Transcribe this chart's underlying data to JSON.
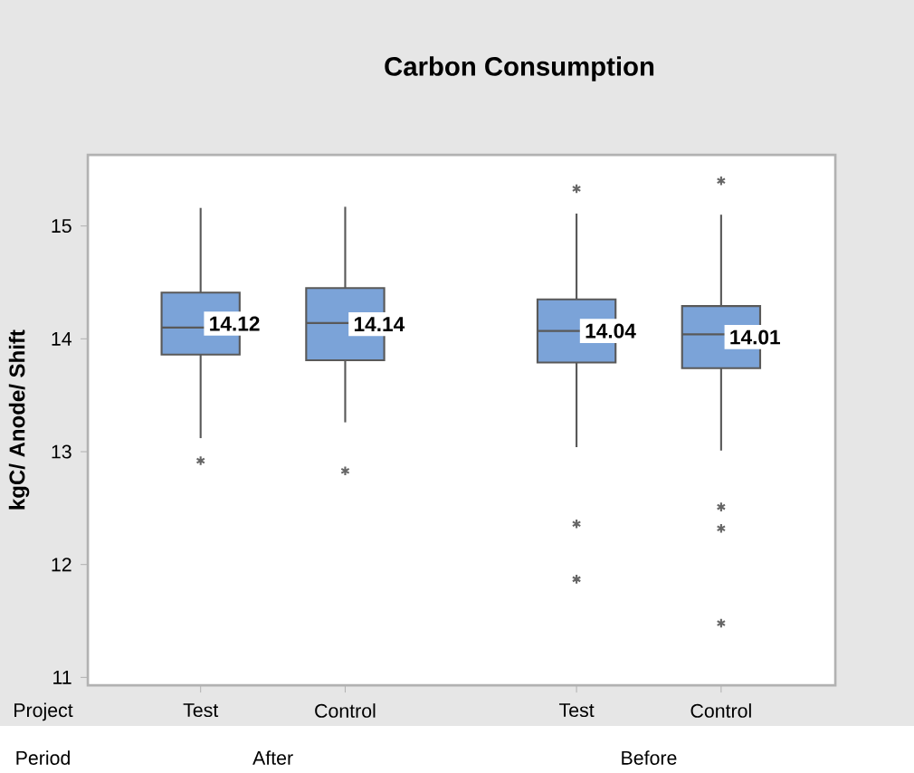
{
  "chart_data": {
    "type": "box",
    "title": "Carbon Consumption",
    "ylabel": "kgC/ Anode/ Shift",
    "categories": [
      "Test",
      "Control",
      "Test",
      "Control"
    ],
    "boxes": [
      {
        "low": 13.12,
        "q1": 13.86,
        "median": 14.1,
        "q3": 14.41,
        "high": 15.16,
        "outliers": [
          12.92
        ]
      },
      {
        "low": 13.26,
        "q1": 13.81,
        "median": 14.14,
        "q3": 14.45,
        "high": 15.17,
        "outliers": [
          12.83
        ]
      },
      {
        "low": 13.04,
        "q1": 13.79,
        "median": 14.07,
        "q3": 14.35,
        "high": 15.11,
        "outliers": [
          15.33,
          12.36,
          11.87
        ]
      },
      {
        "low": 13.01,
        "q1": 13.74,
        "median": 14.04,
        "q3": 14.29,
        "high": 15.1,
        "outliers": [
          15.4,
          12.51,
          12.32,
          11.48
        ]
      }
    ],
    "value_labels": [
      "14.12",
      "14.14",
      "14.04",
      "14.01"
    ],
    "color": "#7ba3d8",
    "ylim": [
      10.93,
      15.63
    ],
    "yticks": [
      11,
      12,
      13,
      14,
      15
    ],
    "grid": false,
    "marker": "star",
    "annotations": [
      "Project",
      "Period",
      "After",
      "Before"
    ]
  }
}
